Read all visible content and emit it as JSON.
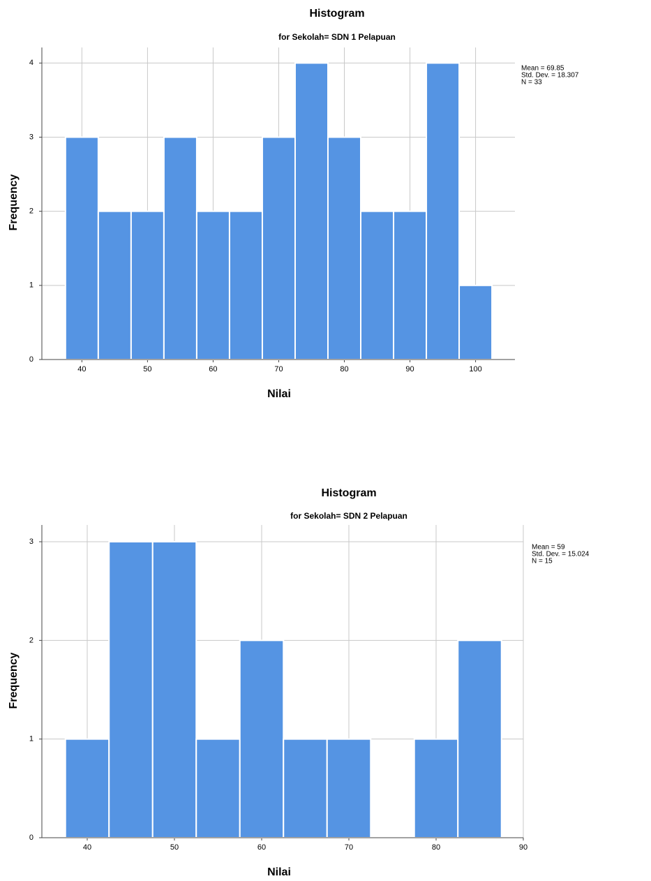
{
  "chart_data": [
    {
      "type": "histogram",
      "title": "Histogram",
      "subtitle": "for Sekolah= SDN 1 Pelapuan",
      "x_label": "Nilai",
      "y_label": "Frequency",
      "annotations": [
        "Mean = 69.85",
        "Std. Dev. = 18.307",
        "N = 33"
      ],
      "bins": [
        37.5,
        42.5,
        47.5,
        52.5,
        57.5,
        62.5,
        67.5,
        72.5,
        77.5,
        82.5,
        87.5,
        92.5,
        97.5,
        102.5
      ],
      "counts": [
        3,
        2,
        2,
        3,
        2,
        2,
        3,
        4,
        3,
        2,
        2,
        4,
        1
      ],
      "color": "#5594e3",
      "xlim": [
        33.9,
        106
      ],
      "ylim": [
        0,
        4.21
      ],
      "xticks": [
        40,
        50,
        60,
        70,
        80,
        90,
        100
      ],
      "yticks": [
        0,
        1,
        2,
        3,
        4
      ],
      "grid": true
    },
    {
      "type": "histogram",
      "title": "Histogram",
      "subtitle": "for Sekolah= SDN 2 Pelapuan",
      "x_label": "Nilai",
      "y_label": "Frequency",
      "annotations": [
        "Mean = 59",
        "Std. Dev. = 15.024",
        "N = 15"
      ],
      "bins": [
        37.5,
        42.5,
        47.5,
        52.5,
        57.5,
        62.5,
        67.5,
        72.5,
        77.5,
        82.5,
        87.5
      ],
      "counts": [
        1,
        3,
        3,
        1,
        2,
        1,
        1,
        0,
        1,
        2
      ],
      "color": "#5594e3",
      "xlim": [
        34.8,
        90
      ],
      "ylim": [
        0,
        3.17
      ],
      "xticks": [
        40,
        50,
        60,
        70,
        80,
        90
      ],
      "yticks": [
        0,
        1,
        2,
        3
      ],
      "grid": true
    }
  ]
}
